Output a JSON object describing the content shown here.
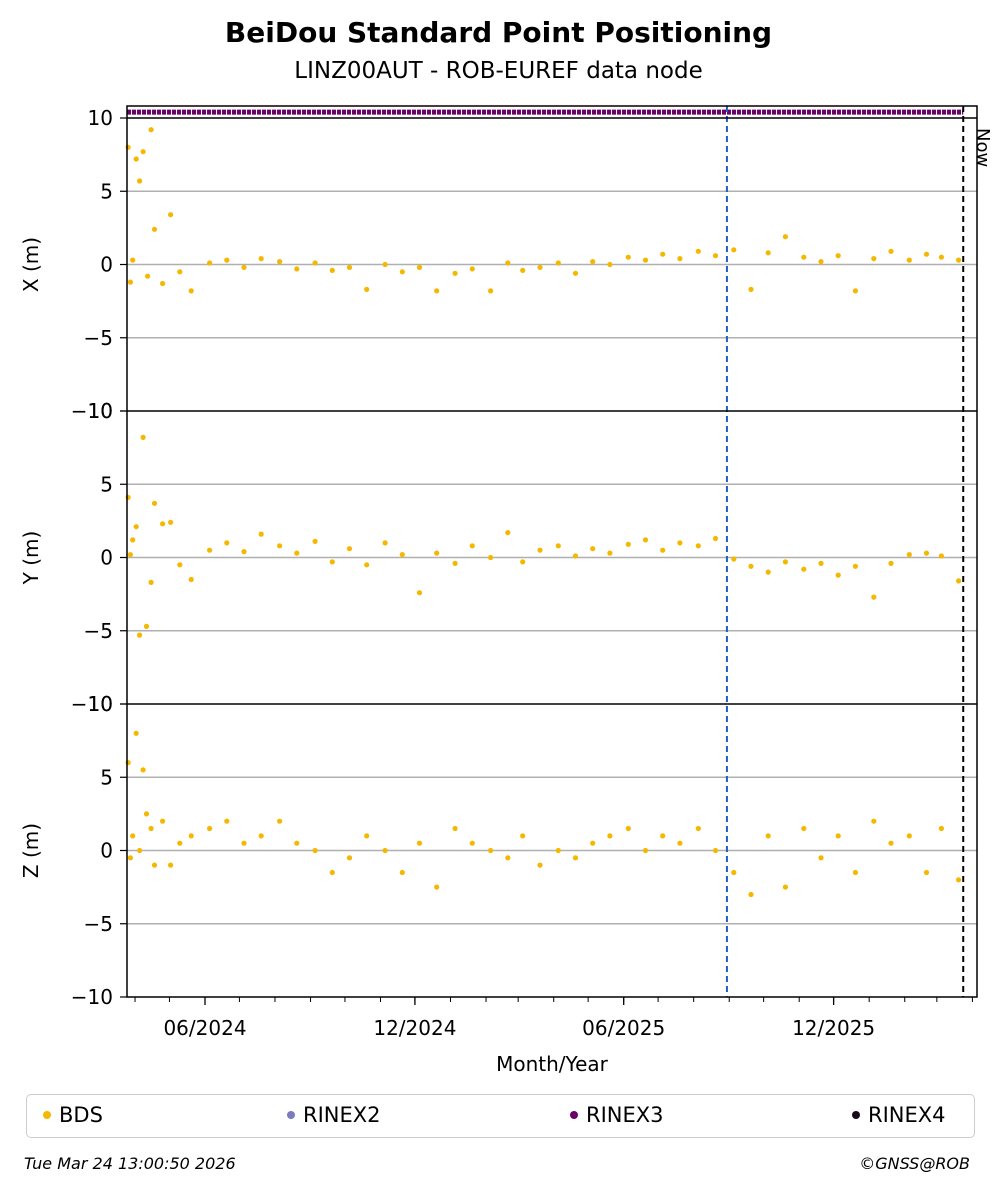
{
  "title": "BeiDou Standard Point Positioning",
  "subtitle": "LINZ00AUT - ROB-EUREF data node",
  "now_label": "Now",
  "footer": {
    "timestamp": "Tue Mar 24 13:00:50 2026",
    "copyright": "©GNSS@ROB"
  },
  "legend": [
    {
      "label": "BDS",
      "color": "#f5b800"
    },
    {
      "label": "RINEX2",
      "color": "#7b7bbf"
    },
    {
      "label": "RINEX3",
      "color": "#6a006a"
    },
    {
      "label": "RINEX4",
      "color": "#1a0a1a"
    }
  ],
  "chart_data": {
    "type": "scatter",
    "xlabel": "Month/Year",
    "x_ticks": [
      "06/2024",
      "12/2024",
      "06/2025",
      "12/2025"
    ],
    "x_tick_dates": [
      "2024-06-01",
      "2024-12-01",
      "2025-06-01",
      "2025-12-01"
    ],
    "x_range": [
      "2024-03-25",
      "2026-04-05"
    ],
    "y_range": [
      -10,
      10
    ],
    "y_ticks": [
      10,
      5,
      0,
      -5,
      -10
    ],
    "grid": "horizontal",
    "legend_position": "bottom",
    "vertical_markers": [
      {
        "date": "2025-08-30",
        "color": "#1f5fbf",
        "style": "dashed"
      },
      {
        "date": "2026-03-24",
        "color": "#000000",
        "style": "dashed",
        "label": "Now"
      }
    ],
    "rinex3_availability": {
      "start": "2024-03-25",
      "end": "2026-03-24",
      "value": 10.4,
      "color": "#6a006a"
    },
    "panels": [
      {
        "ylabel": "X (m)",
        "series": [
          {
            "name": "BDS",
            "color": "#f5b800",
            "x": [
              "2024-03-26",
              "2024-03-28",
              "2024-03-30",
              "2024-04-02",
              "2024-04-05",
              "2024-04-08",
              "2024-04-12",
              "2024-04-15",
              "2024-04-18",
              "2024-04-25",
              "2024-05-02",
              "2024-05-10",
              "2024-05-20",
              "2024-06-05",
              "2024-06-20",
              "2024-07-05",
              "2024-07-20",
              "2024-08-05",
              "2024-08-20",
              "2024-09-05",
              "2024-09-20",
              "2024-10-05",
              "2024-10-20",
              "2024-11-05",
              "2024-11-20",
              "2024-12-05",
              "2024-12-20",
              "2025-01-05",
              "2025-01-20",
              "2025-02-05",
              "2025-02-20",
              "2025-03-05",
              "2025-03-20",
              "2025-04-05",
              "2025-04-20",
              "2025-05-05",
              "2025-05-20",
              "2025-06-05",
              "2025-06-20",
              "2025-07-05",
              "2025-07-20",
              "2025-08-05",
              "2025-08-20",
              "2025-09-05",
              "2025-09-20",
              "2025-10-05",
              "2025-10-20",
              "2025-11-05",
              "2025-11-20",
              "2025-12-05",
              "2025-12-20",
              "2026-01-05",
              "2026-01-20",
              "2026-02-05",
              "2026-02-20",
              "2026-03-05",
              "2026-03-20"
            ],
            "y": [
              8.0,
              -1.2,
              0.3,
              7.2,
              5.7,
              7.7,
              -0.8,
              9.2,
              2.4,
              -1.3,
              3.4,
              -0.5,
              -1.8,
              0.1,
              0.3,
              -0.2,
              0.4,
              0.2,
              -0.3,
              0.1,
              -0.4,
              -0.2,
              -1.7,
              0.0,
              -0.5,
              -0.2,
              -1.8,
              -0.6,
              -0.3,
              -1.8,
              0.1,
              -0.4,
              -0.2,
              0.1,
              -0.6,
              0.2,
              0.0,
              0.5,
              0.3,
              0.7,
              0.4,
              0.9,
              0.6,
              1.0,
              -1.7,
              0.8,
              1.9,
              0.5,
              0.2,
              0.6,
              -1.8,
              0.4,
              0.9,
              0.3,
              0.7,
              0.5,
              0.3
            ]
          }
        ]
      },
      {
        "ylabel": "Y (m)",
        "series": [
          {
            "name": "BDS",
            "color": "#f5b800",
            "x": [
              "2024-03-26",
              "2024-03-28",
              "2024-03-30",
              "2024-04-02",
              "2024-04-05",
              "2024-04-08",
              "2024-04-11",
              "2024-04-15",
              "2024-04-18",
              "2024-04-25",
              "2024-05-02",
              "2024-05-10",
              "2024-05-20",
              "2024-06-05",
              "2024-06-20",
              "2024-07-05",
              "2024-07-20",
              "2024-08-05",
              "2024-08-20",
              "2024-09-05",
              "2024-09-20",
              "2024-10-05",
              "2024-10-20",
              "2024-11-05",
              "2024-11-20",
              "2024-12-05",
              "2024-12-20",
              "2025-01-05",
              "2025-01-20",
              "2025-02-05",
              "2025-02-20",
              "2025-03-05",
              "2025-03-20",
              "2025-04-05",
              "2025-04-20",
              "2025-05-05",
              "2025-05-20",
              "2025-06-05",
              "2025-06-20",
              "2025-07-05",
              "2025-07-20",
              "2025-08-05",
              "2025-08-20",
              "2025-09-05",
              "2025-09-20",
              "2025-10-05",
              "2025-10-20",
              "2025-11-05",
              "2025-11-20",
              "2025-12-05",
              "2025-12-20",
              "2026-01-05",
              "2026-01-20",
              "2026-02-05",
              "2026-02-20",
              "2026-03-05",
              "2026-03-20"
            ],
            "y": [
              4.1,
              0.2,
              1.2,
              2.1,
              -5.3,
              8.2,
              -4.7,
              -1.7,
              3.7,
              2.3,
              2.4,
              -0.5,
              -1.5,
              0.5,
              1.0,
              0.4,
              1.6,
              0.8,
              0.3,
              1.1,
              -0.3,
              0.6,
              -0.5,
              1.0,
              0.2,
              -2.4,
              0.3,
              -0.4,
              0.8,
              0.0,
              1.7,
              -0.3,
              0.5,
              0.8,
              0.1,
              0.6,
              0.3,
              0.9,
              1.2,
              0.5,
              1.0,
              0.8,
              1.3,
              -0.1,
              -0.6,
              -1.0,
              -0.3,
              -0.8,
              -0.4,
              -1.2,
              -0.6,
              -2.7,
              -0.4,
              0.2,
              0.3,
              0.1,
              -1.6
            ]
          }
        ]
      },
      {
        "ylabel": "Z (m)",
        "series": [
          {
            "name": "BDS",
            "color": "#f5b800",
            "x": [
              "2024-03-26",
              "2024-03-28",
              "2024-03-30",
              "2024-04-02",
              "2024-04-05",
              "2024-04-08",
              "2024-04-11",
              "2024-04-15",
              "2024-04-18",
              "2024-04-25",
              "2024-05-02",
              "2024-05-10",
              "2024-05-20",
              "2024-06-05",
              "2024-06-20",
              "2024-07-05",
              "2024-07-20",
              "2024-08-05",
              "2024-08-20",
              "2024-09-05",
              "2024-09-20",
              "2024-10-05",
              "2024-10-20",
              "2024-11-05",
              "2024-11-20",
              "2024-12-05",
              "2024-12-20",
              "2025-01-05",
              "2025-01-20",
              "2025-02-05",
              "2025-02-20",
              "2025-03-05",
              "2025-03-20",
              "2025-04-05",
              "2025-04-20",
              "2025-05-05",
              "2025-05-20",
              "2025-06-05",
              "2025-06-20",
              "2025-07-05",
              "2025-07-20",
              "2025-08-05",
              "2025-08-20",
              "2025-09-05",
              "2025-09-20",
              "2025-10-05",
              "2025-10-20",
              "2025-11-05",
              "2025-11-20",
              "2025-12-05",
              "2025-12-20",
              "2026-01-05",
              "2026-01-20",
              "2026-02-05",
              "2026-02-20",
              "2026-03-05",
              "2026-03-20"
            ],
            "y": [
              6.0,
              -0.5,
              1.0,
              8.0,
              0.0,
              5.5,
              2.5,
              1.5,
              -1.0,
              2.0,
              -1.0,
              0.5,
              1.0,
              1.5,
              2.0,
              0.5,
              1.0,
              2.0,
              0.5,
              0.0,
              -1.5,
              -0.5,
              1.0,
              0.0,
              -1.5,
              0.5,
              -2.5,
              1.5,
              0.5,
              0.0,
              -0.5,
              1.0,
              -1.0,
              0.0,
              -0.5,
              0.5,
              1.0,
              1.5,
              0.0,
              1.0,
              0.5,
              1.5,
              0.0,
              -1.5,
              -3.0,
              1.0,
              -2.5,
              1.5,
              -0.5,
              1.0,
              -1.5,
              2.0,
              0.5,
              1.0,
              -1.5,
              1.5,
              -2.0
            ]
          }
        ]
      }
    ]
  }
}
